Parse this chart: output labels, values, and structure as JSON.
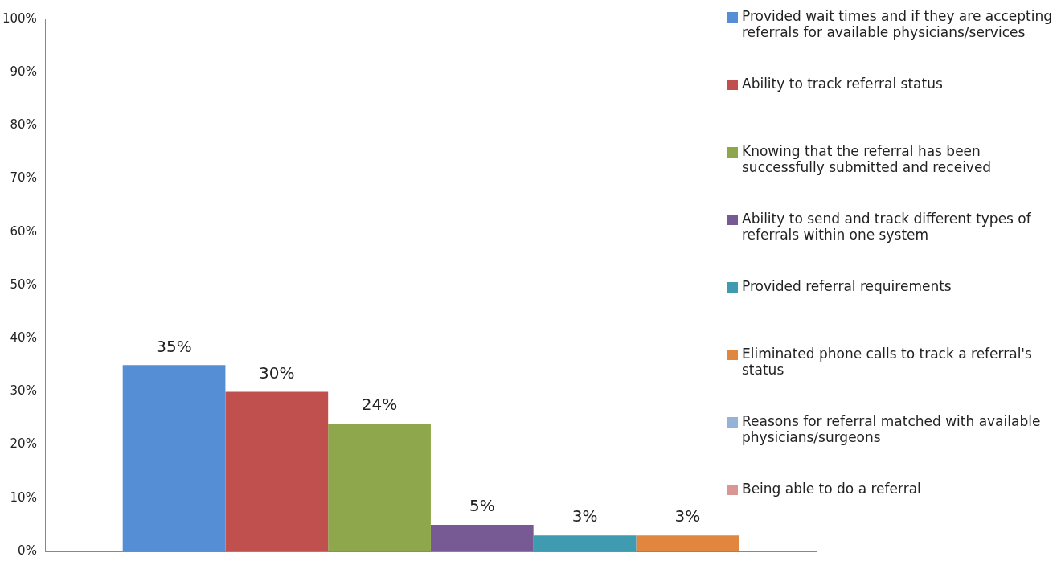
{
  "chart_data": {
    "type": "bar",
    "categories": [
      null
    ],
    "series": [
      {
        "name": "Provided wait times and if they are accepting referrals for available physicians/services",
        "color": "#558ed5",
        "values": [
          35
        ],
        "value_labels": [
          "35%"
        ]
      },
      {
        "name": "Ability to track referral status",
        "color": "#c0504d",
        "values": [
          30
        ],
        "value_labels": [
          "30%"
        ]
      },
      {
        "name": "Knowing that the referral has been successfully submitted and received",
        "color": "#8ea74c",
        "values": [
          24
        ],
        "value_labels": [
          "24%"
        ]
      },
      {
        "name": "Ability to send and track different types of referrals within one system",
        "color": "#775a93",
        "values": [
          5
        ],
        "value_labels": [
          "5%"
        ]
      },
      {
        "name": "Provided referral requirements",
        "color": "#3f9bb0",
        "values": [
          3
        ],
        "value_labels": [
          "3%"
        ]
      },
      {
        "name": "Eliminated phone calls to track a referral's status",
        "color": "#e0863e",
        "values": [
          3
        ],
        "value_labels": [
          "3%"
        ]
      },
      {
        "name": "Reasons for referral matched with available physicians/surgeons",
        "color": "#95b3d7",
        "values": [
          null
        ]
      },
      {
        "name": "Being able to do a referral",
        "color": "#d99694",
        "values": [
          null
        ]
      }
    ],
    "ylim": [
      0,
      100
    ],
    "yticks": [
      {
        "value": 0,
        "label": "0%"
      },
      {
        "value": 10,
        "label": "10%"
      },
      {
        "value": 20,
        "label": "20%"
      },
      {
        "value": 30,
        "label": "30%"
      },
      {
        "value": 40,
        "label": "40%"
      },
      {
        "value": 50,
        "label": "50%"
      },
      {
        "value": 60,
        "label": "60%"
      },
      {
        "value": 70,
        "label": "70%"
      },
      {
        "value": 80,
        "label": "80%"
      },
      {
        "value": 90,
        "label": "90%"
      },
      {
        "value": 100,
        "label": "100%"
      }
    ],
    "grid": false,
    "legend": "right"
  }
}
